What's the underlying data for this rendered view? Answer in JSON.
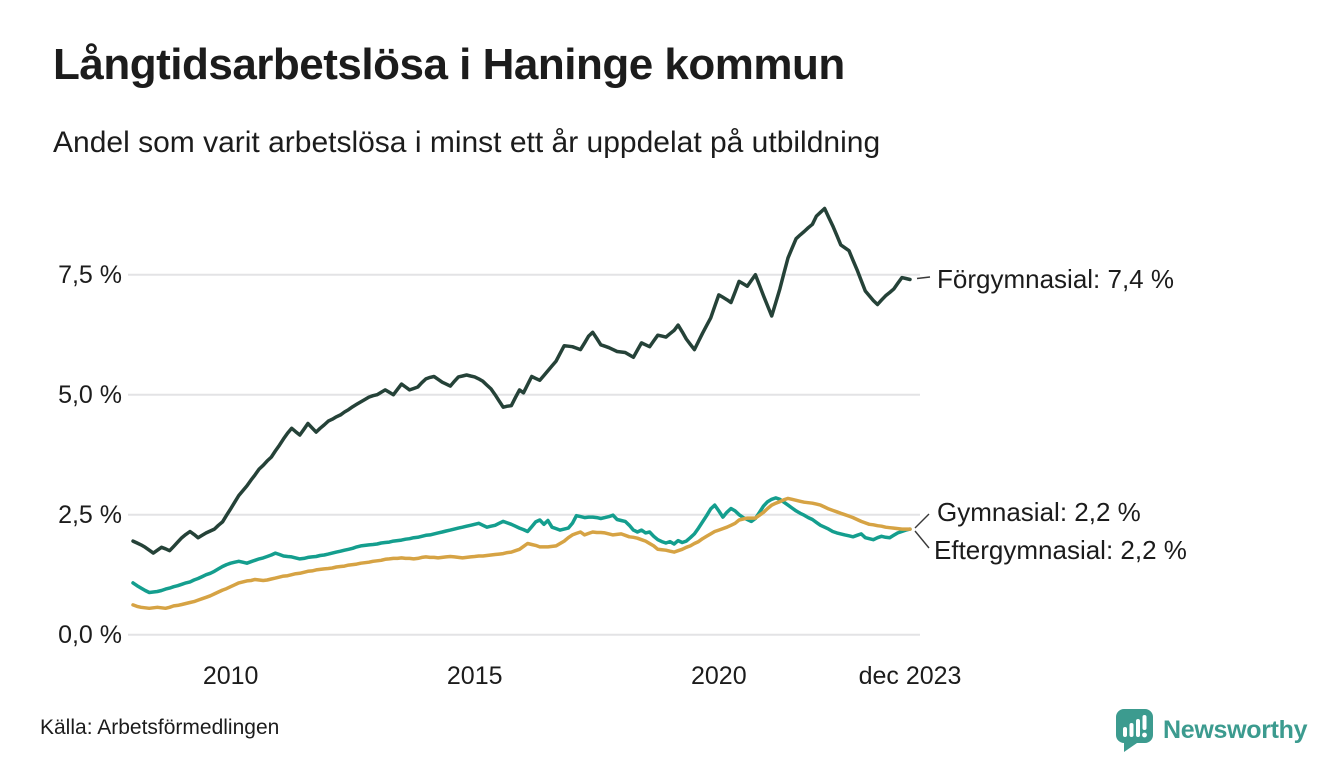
{
  "title": "Långtidsarbetslösa i Haninge kommun",
  "subtitle": "Andel som varit arbetslösa i minst ett år uppdelat på utbildning",
  "source": "Källa: Arbetsförmedlingen",
  "branding": {
    "name": "Newsworthy",
    "color": "#3c9b8f"
  },
  "colors": {
    "text": "#1c1c1c",
    "grid": "#e3e3e5",
    "connector": "#3a3a3a",
    "background": "#ffffff"
  },
  "chart_data": {
    "type": "line",
    "title": "Långtidsarbetslösa i Haninge kommun",
    "subtitle": "Andel som varit arbetslösa i minst ett år uppdelat på utbildning",
    "unit": "%",
    "frequency": "monthly",
    "x_start": "2008-01",
    "x_end": "2023-12",
    "grid": "horizontal",
    "ylim": [
      0,
      9.4
    ],
    "y_ticks": [
      "7,5 %",
      "5,0 %",
      "2,5 %",
      "0,0 %"
    ],
    "y_tick_values": [
      7.5,
      5.0,
      2.5,
      0.0
    ],
    "x_ticks": [
      "2010",
      "2015",
      "2020",
      "dec 2023"
    ],
    "x_tick_indices": [
      24,
      84,
      144,
      191
    ],
    "legend_position": "right-end-labels",
    "series": [
      {
        "name": "Förgymnasial",
        "slug": "forgymnasial",
        "label": "Förgymnasial: 7,4 %",
        "end_value": 7.4,
        "color": "#254238",
        "values": [
          1.95,
          1.91,
          1.87,
          1.82,
          1.76,
          1.7,
          1.76,
          1.82,
          1.79,
          1.75,
          1.84,
          1.93,
          2.02,
          2.09,
          2.15,
          2.09,
          2.02,
          2.07,
          2.12,
          2.16,
          2.2,
          2.28,
          2.35,
          2.49,
          2.62,
          2.76,
          2.9,
          3.0,
          3.1,
          3.22,
          3.33,
          3.45,
          3.53,
          3.62,
          3.7,
          3.83,
          3.95,
          4.08,
          4.2,
          4.3,
          4.23,
          4.16,
          4.28,
          4.4,
          4.31,
          4.22,
          4.3,
          4.37,
          4.45,
          4.49,
          4.54,
          4.58,
          4.64,
          4.69,
          4.75,
          4.8,
          4.85,
          4.9,
          4.95,
          4.98,
          5.0,
          5.05,
          5.1,
          5.05,
          5.0,
          5.11,
          5.22,
          5.16,
          5.1,
          5.13,
          5.16,
          5.25,
          5.33,
          5.36,
          5.38,
          5.32,
          5.26,
          5.22,
          5.18,
          5.28,
          5.37,
          5.39,
          5.41,
          5.39,
          5.37,
          5.33,
          5.28,
          5.2,
          5.12,
          5.0,
          4.87,
          4.74,
          4.76,
          4.77,
          4.94,
          5.1,
          5.04,
          5.21,
          5.38,
          5.34,
          5.3,
          5.4,
          5.5,
          5.6,
          5.7,
          5.86,
          6.02,
          6.01,
          6.0,
          5.97,
          5.94,
          6.08,
          6.22,
          6.3,
          6.17,
          6.04,
          6.01,
          5.98,
          5.94,
          5.9,
          5.89,
          5.88,
          5.83,
          5.78,
          5.93,
          6.08,
          6.04,
          6.0,
          6.12,
          6.24,
          6.22,
          6.2,
          6.27,
          6.34,
          6.45,
          6.31,
          6.16,
          6.05,
          5.94,
          6.11,
          6.28,
          6.44,
          6.6,
          6.84,
          7.08,
          7.03,
          6.98,
          6.92,
          7.14,
          7.36,
          7.31,
          7.26,
          7.38,
          7.5,
          7.28,
          7.06,
          6.85,
          6.64,
          6.92,
          7.2,
          7.53,
          7.85,
          8.05,
          8.25,
          8.33,
          8.4,
          8.48,
          8.55,
          8.72,
          8.8,
          8.88,
          8.7,
          8.52,
          8.32,
          8.12,
          8.06,
          8.0,
          7.8,
          7.6,
          7.38,
          7.16,
          7.06,
          6.96,
          6.88,
          6.97,
          7.06,
          7.13,
          7.2,
          7.32,
          7.44,
          7.42,
          7.4
        ]
      },
      {
        "name": "Gymnasial",
        "slug": "gymnasial",
        "label": "Gymnasial: 2,2 %",
        "end_value": 2.2,
        "color": "#149e8e",
        "values": [
          1.08,
          1.02,
          0.97,
          0.92,
          0.88,
          0.89,
          0.9,
          0.92,
          0.95,
          0.97,
          1.0,
          1.02,
          1.05,
          1.08,
          1.1,
          1.14,
          1.17,
          1.21,
          1.25,
          1.28,
          1.32,
          1.37,
          1.42,
          1.46,
          1.49,
          1.51,
          1.53,
          1.51,
          1.49,
          1.52,
          1.55,
          1.58,
          1.6,
          1.63,
          1.66,
          1.7,
          1.67,
          1.64,
          1.63,
          1.62,
          1.6,
          1.58,
          1.59,
          1.61,
          1.62,
          1.63,
          1.65,
          1.66,
          1.68,
          1.7,
          1.72,
          1.74,
          1.76,
          1.78,
          1.8,
          1.83,
          1.85,
          1.86,
          1.87,
          1.88,
          1.89,
          1.91,
          1.92,
          1.93,
          1.95,
          1.96,
          1.97,
          1.99,
          2.0,
          2.02,
          2.03,
          2.05,
          2.07,
          2.08,
          2.1,
          2.12,
          2.14,
          2.16,
          2.18,
          2.2,
          2.22,
          2.24,
          2.26,
          2.28,
          2.3,
          2.32,
          2.28,
          2.24,
          2.26,
          2.28,
          2.32,
          2.36,
          2.33,
          2.3,
          2.26,
          2.22,
          2.19,
          2.15,
          2.25,
          2.35,
          2.39,
          2.3,
          2.38,
          2.24,
          2.21,
          2.18,
          2.2,
          2.22,
          2.32,
          2.48,
          2.46,
          2.44,
          2.45,
          2.45,
          2.44,
          2.42,
          2.44,
          2.46,
          2.49,
          2.4,
          2.38,
          2.36,
          2.28,
          2.18,
          2.14,
          2.18,
          2.12,
          2.14,
          2.05,
          1.98,
          1.94,
          1.91,
          1.94,
          1.89,
          1.96,
          1.92,
          1.95,
          2.02,
          2.1,
          2.22,
          2.35,
          2.48,
          2.62,
          2.7,
          2.58,
          2.45,
          2.55,
          2.63,
          2.58,
          2.5,
          2.44,
          2.4,
          2.36,
          2.42,
          2.55,
          2.68,
          2.77,
          2.82,
          2.85,
          2.82,
          2.76,
          2.7,
          2.64,
          2.58,
          2.53,
          2.49,
          2.44,
          2.4,
          2.34,
          2.28,
          2.24,
          2.2,
          2.15,
          2.12,
          2.1,
          2.08,
          2.06,
          2.04,
          2.07,
          2.1,
          2.02,
          2.0,
          1.98,
          2.02,
          2.05,
          2.03,
          2.02,
          2.07,
          2.12,
          2.15,
          2.18,
          2.2
        ]
      },
      {
        "name": "Eftergymnasial",
        "slug": "eftergymnasial",
        "label": "Eftergymnasial: 2,2 %",
        "end_value": 2.2,
        "color": "#d6a344",
        "values": [
          0.62,
          0.59,
          0.57,
          0.56,
          0.55,
          0.56,
          0.57,
          0.56,
          0.55,
          0.57,
          0.6,
          0.61,
          0.63,
          0.65,
          0.67,
          0.69,
          0.72,
          0.75,
          0.78,
          0.81,
          0.85,
          0.89,
          0.93,
          0.96,
          1.0,
          1.04,
          1.08,
          1.1,
          1.12,
          1.13,
          1.15,
          1.14,
          1.13,
          1.14,
          1.16,
          1.18,
          1.2,
          1.22,
          1.23,
          1.25,
          1.27,
          1.28,
          1.3,
          1.32,
          1.33,
          1.35,
          1.36,
          1.37,
          1.38,
          1.39,
          1.41,
          1.42,
          1.43,
          1.45,
          1.46,
          1.47,
          1.49,
          1.5,
          1.51,
          1.53,
          1.54,
          1.55,
          1.57,
          1.58,
          1.59,
          1.59,
          1.6,
          1.59,
          1.59,
          1.58,
          1.59,
          1.61,
          1.62,
          1.61,
          1.61,
          1.6,
          1.61,
          1.62,
          1.63,
          1.62,
          1.61,
          1.6,
          1.61,
          1.62,
          1.63,
          1.64,
          1.64,
          1.65,
          1.66,
          1.67,
          1.68,
          1.69,
          1.71,
          1.72,
          1.75,
          1.78,
          1.84,
          1.9,
          1.88,
          1.86,
          1.83,
          1.83,
          1.83,
          1.84,
          1.85,
          1.9,
          1.95,
          2.02,
          2.08,
          2.11,
          2.14,
          2.08,
          2.11,
          2.14,
          2.13,
          2.13,
          2.12,
          2.1,
          2.08,
          2.09,
          2.1,
          2.07,
          2.04,
          2.03,
          2.01,
          1.98,
          1.95,
          1.9,
          1.85,
          1.78,
          1.77,
          1.76,
          1.74,
          1.72,
          1.75,
          1.78,
          1.82,
          1.85,
          1.9,
          1.94,
          2.0,
          2.05,
          2.1,
          2.15,
          2.18,
          2.21,
          2.24,
          2.28,
          2.32,
          2.39,
          2.41,
          2.43,
          2.43,
          2.43,
          2.49,
          2.55,
          2.63,
          2.7,
          2.74,
          2.77,
          2.81,
          2.84,
          2.82,
          2.8,
          2.78,
          2.76,
          2.75,
          2.74,
          2.72,
          2.7,
          2.66,
          2.62,
          2.59,
          2.56,
          2.53,
          2.5,
          2.47,
          2.44,
          2.4,
          2.36,
          2.33,
          2.3,
          2.29,
          2.27,
          2.26,
          2.24,
          2.23,
          2.22,
          2.21,
          2.2,
          2.2,
          2.2
        ]
      }
    ]
  }
}
